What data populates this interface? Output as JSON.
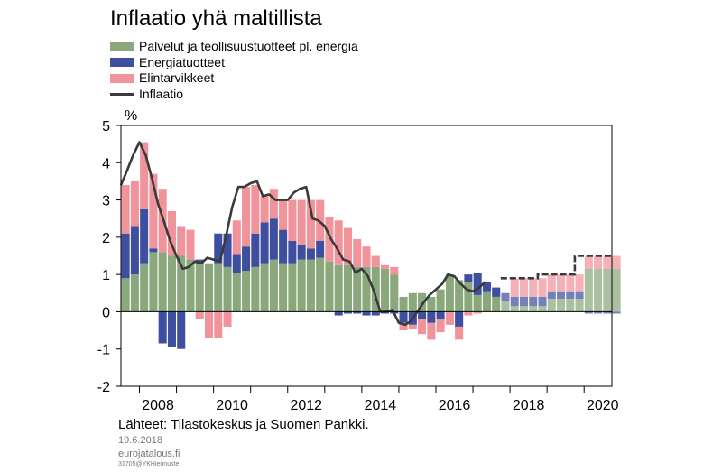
{
  "chart_data": {
    "type": "bar",
    "title": "Inflaatio yhä maltillista",
    "ylabel": "%",
    "ylim": [
      -2,
      5
    ],
    "yticks": [
      -2,
      -1,
      0,
      1,
      2,
      3,
      4,
      5
    ],
    "x_start": 2007.5,
    "x_end": 2020.75,
    "xticks": [
      2008,
      2010,
      2012,
      2014,
      2016,
      2018,
      2020
    ],
    "forecast_start": 2017.75,
    "quarters": [
      "2007Q3",
      "2007Q4",
      "2008Q1",
      "2008Q2",
      "2008Q3",
      "2008Q4",
      "2009Q1",
      "2009Q2",
      "2009Q3",
      "2009Q4",
      "2010Q1",
      "2010Q2",
      "2010Q3",
      "2010Q4",
      "2011Q1",
      "2011Q2",
      "2011Q3",
      "2011Q4",
      "2012Q1",
      "2012Q2",
      "2012Q3",
      "2012Q4",
      "2013Q1",
      "2013Q2",
      "2013Q3",
      "2013Q4",
      "2014Q1",
      "2014Q2",
      "2014Q3",
      "2014Q4",
      "2015Q1",
      "2015Q2",
      "2015Q3",
      "2015Q4",
      "2016Q1",
      "2016Q2",
      "2016Q3",
      "2016Q4",
      "2017Q1",
      "2017Q2",
      "2017Q3",
      "2017Q4",
      "2018Q1",
      "2018Q2",
      "2018Q3",
      "2018Q4",
      "2019Q1",
      "2019Q2",
      "2019Q3",
      "2019Q4",
      "2020Q1",
      "2020Q2",
      "2020Q3",
      "2020Q4"
    ],
    "series": [
      {
        "name": "Palvelut ja teollisuustuotteet pl. energia",
        "color": "#8aa87c",
        "values": [
          0.9,
          1.0,
          1.3,
          1.6,
          1.6,
          1.5,
          1.5,
          1.4,
          1.3,
          1.3,
          1.3,
          1.2,
          1.05,
          1.1,
          1.2,
          1.3,
          1.4,
          1.3,
          1.3,
          1.4,
          1.4,
          1.45,
          1.35,
          1.25,
          1.25,
          1.2,
          1.2,
          1.2,
          1.15,
          1.0,
          0.4,
          0.5,
          0.5,
          0.4,
          0.6,
          1.0,
          0.85,
          0.8,
          0.45,
          0.55,
          0.4,
          0.3,
          0.15,
          0.15,
          0.15,
          0.15,
          0.35,
          0.35,
          0.35,
          0.35,
          1.15,
          1.15,
          1.15,
          1.15
        ]
      },
      {
        "name": "Energiatuotteet",
        "color": "#3f4fa0",
        "values": [
          1.2,
          1.3,
          1.45,
          0.1,
          -0.85,
          -0.95,
          -1.0,
          0.0,
          0.1,
          0.0,
          0.8,
          0.9,
          0.5,
          0.65,
          0.9,
          1.1,
          1.1,
          0.9,
          0.6,
          0.4,
          0.3,
          0.45,
          0.0,
          -0.1,
          -0.05,
          -0.05,
          -0.1,
          -0.1,
          -0.05,
          -0.05,
          -0.3,
          -0.35,
          -0.2,
          -0.3,
          -0.2,
          0.0,
          -0.4,
          0.2,
          0.6,
          0.25,
          0.25,
          0.2,
          0.25,
          0.25,
          0.25,
          0.25,
          0.2,
          0.2,
          0.2,
          0.2,
          -0.05,
          -0.05,
          -0.05,
          -0.05
        ]
      },
      {
        "name": "Elintarvikkeet",
        "color": "#f0939b",
        "values": [
          1.3,
          1.2,
          1.8,
          2.0,
          1.7,
          1.2,
          0.8,
          0.8,
          -0.2,
          -0.7,
          -0.7,
          -0.4,
          0.9,
          1.6,
          1.3,
          0.7,
          0.8,
          0.8,
          1.1,
          1.2,
          1.3,
          1.1,
          1.2,
          1.2,
          1.0,
          0.75,
          0.55,
          0.3,
          0.1,
          0.2,
          -0.2,
          -0.1,
          -0.4,
          -0.45,
          -0.35,
          -0.35,
          -0.35,
          -0.1,
          -0.05,
          0.0,
          0.0,
          0.0,
          0.5,
          0.5,
          0.5,
          0.5,
          0.45,
          0.45,
          0.45,
          0.45,
          0.35,
          0.35,
          0.35,
          0.35
        ]
      }
    ],
    "inflation_line": {
      "name": "Inflaatio",
      "color": "#3a3a3a",
      "points": [
        [
          2007.5,
          3.4
        ],
        [
          2007.67,
          3.8
        ],
        [
          2007.83,
          4.2
        ],
        [
          2008.0,
          4.55
        ],
        [
          2008.17,
          4.2
        ],
        [
          2008.33,
          3.6
        ],
        [
          2008.5,
          2.9
        ],
        [
          2008.67,
          2.4
        ],
        [
          2008.83,
          1.9
        ],
        [
          2009.0,
          1.5
        ],
        [
          2009.17,
          1.15
        ],
        [
          2009.33,
          1.2
        ],
        [
          2009.5,
          1.35
        ],
        [
          2009.67,
          1.3
        ],
        [
          2009.83,
          1.45
        ],
        [
          2010.0,
          1.4
        ],
        [
          2010.17,
          1.35
        ],
        [
          2010.33,
          2.0
        ],
        [
          2010.5,
          2.8
        ],
        [
          2010.67,
          3.35
        ],
        [
          2010.83,
          3.35
        ],
        [
          2011.0,
          3.45
        ],
        [
          2011.17,
          3.5
        ],
        [
          2011.33,
          3.1
        ],
        [
          2011.5,
          3.15
        ],
        [
          2011.67,
          3.0
        ],
        [
          2011.83,
          3.0
        ],
        [
          2012.0,
          3.0
        ],
        [
          2012.17,
          3.2
        ],
        [
          2012.33,
          3.3
        ],
        [
          2012.5,
          3.35
        ],
        [
          2012.67,
          2.5
        ],
        [
          2012.83,
          2.45
        ],
        [
          2013.0,
          2.3
        ],
        [
          2013.17,
          1.95
        ],
        [
          2013.33,
          1.7
        ],
        [
          2013.5,
          1.4
        ],
        [
          2013.67,
          1.35
        ],
        [
          2013.83,
          1.05
        ],
        [
          2014.0,
          1.15
        ],
        [
          2014.17,
          0.95
        ],
        [
          2014.33,
          0.55
        ],
        [
          2014.5,
          0.0
        ],
        [
          2014.67,
          0.0
        ],
        [
          2014.83,
          0.05
        ],
        [
          2015.0,
          -0.3
        ],
        [
          2015.17,
          -0.35
        ],
        [
          2015.33,
          -0.25
        ],
        [
          2015.5,
          0.0
        ],
        [
          2015.67,
          0.25
        ],
        [
          2015.83,
          0.45
        ],
        [
          2016.0,
          0.6
        ],
        [
          2016.17,
          0.75
        ],
        [
          2016.33,
          1.0
        ],
        [
          2016.5,
          0.95
        ],
        [
          2016.67,
          0.75
        ],
        [
          2016.83,
          0.6
        ],
        [
          2017.0,
          0.55
        ],
        [
          2017.17,
          0.65
        ],
        [
          2017.33,
          0.8
        ]
      ],
      "forecast": [
        [
          2017.75,
          0.9
        ],
        [
          2018.75,
          0.9
        ],
        [
          2018.75,
          1.0
        ],
        [
          2019.75,
          1.0
        ],
        [
          2019.75,
          1.5
        ],
        [
          2020.75,
          1.5
        ]
      ]
    }
  },
  "footer": {
    "source": "Lähteet: Tilastokeskus ja Suomen Pankki.",
    "date": "19.6.2018",
    "site": "eurojatalous.fi",
    "code": "31705@YKHiennuste"
  }
}
